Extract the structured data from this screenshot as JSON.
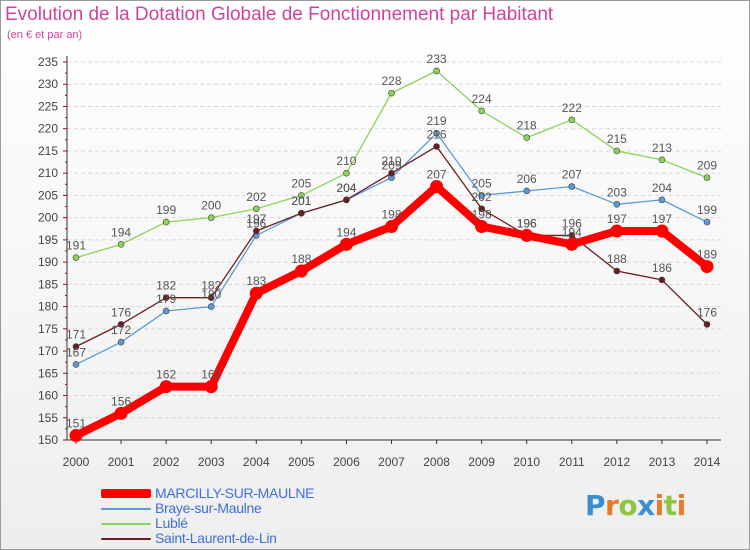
{
  "title": "Evolution de la Dotation Globale de Fonctionnement par Habitant",
  "subtitle": "(en € et par an)",
  "logo": {
    "text": "Proxiti",
    "letters": [
      {
        "ch": "P",
        "color": "#3a8ed4"
      },
      {
        "ch": "r",
        "color": "#e8792b"
      },
      {
        "ch": "o",
        "color": "#8cc63f"
      },
      {
        "ch": "x",
        "color": "#3a8ed4"
      },
      {
        "ch": "i",
        "color": "#e8792b"
      },
      {
        "ch": "t",
        "color": "#8cc63f"
      },
      {
        "ch": "i",
        "color": "#e8792b"
      }
    ]
  },
  "chart_data": {
    "type": "line",
    "title": "Evolution de la Dotation Globale de Fonctionnement par Habitant",
    "subtitle": "(en € et par an)",
    "xlabel": "",
    "ylabel": "",
    "x": [
      "2000",
      "2001",
      "2002",
      "2003",
      "2004",
      "2005",
      "2006",
      "2007",
      "2008",
      "2009",
      "2010",
      "2011",
      "2012",
      "2013",
      "2014"
    ],
    "ylim": [
      150,
      235
    ],
    "yticks": [
      150,
      155,
      160,
      165,
      170,
      175,
      180,
      185,
      190,
      195,
      200,
      205,
      210,
      215,
      220,
      225,
      230,
      235
    ],
    "grid": "horizontal dashed",
    "legend_position": "bottom-left",
    "series": [
      {
        "name": "MARCILLY-SUR-MAULNE",
        "color": "#ff0000",
        "values": [
          151,
          156,
          162,
          162,
          183,
          188,
          194,
          198,
          207,
          198,
          196,
          194,
          197,
          197,
          189
        ]
      },
      {
        "name": "Braye-sur-Maulne",
        "color": "#5b9bd5",
        "values": [
          167,
          172,
          179,
          180,
          196,
          201,
          204,
          209,
          219,
          205,
          206,
          207,
          203,
          204,
          199
        ]
      },
      {
        "name": "Lublé",
        "color": "#8cd35a",
        "values": [
          191,
          194,
          199,
          200,
          202,
          205,
          210,
          228,
          233,
          224,
          218,
          222,
          215,
          213,
          209
        ]
      },
      {
        "name": "Saint-Laurent-de-Lin",
        "color": "#6b1e1e",
        "values": [
          171,
          176,
          182,
          182,
          197,
          201,
          204,
          210,
          216,
          202,
          196,
          196,
          188,
          186,
          176
        ]
      }
    ]
  }
}
